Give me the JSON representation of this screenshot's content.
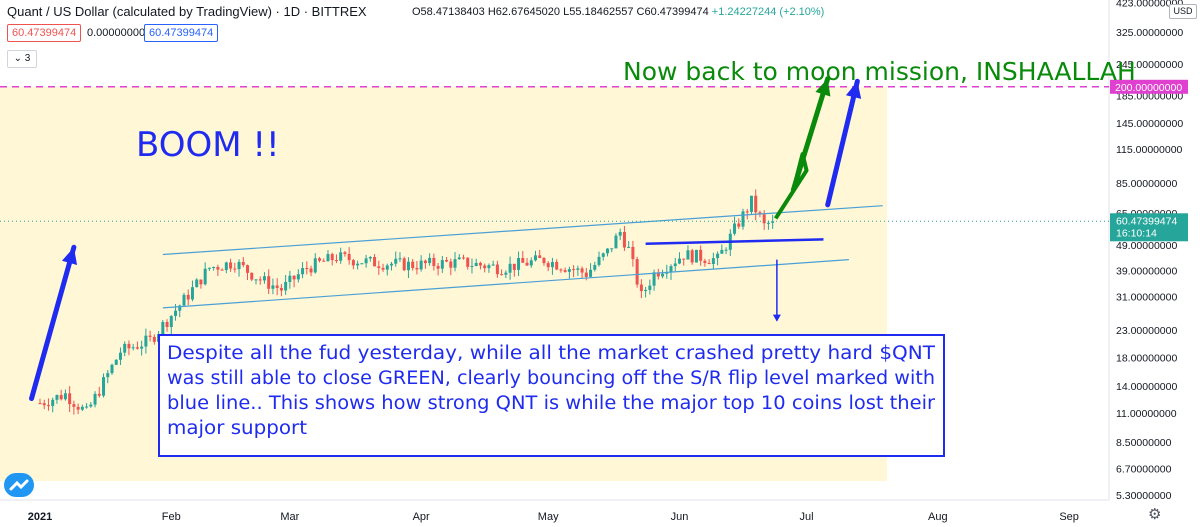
{
  "header": {
    "title": "Quant / US Dollar (calculated by TradingView) · 1D · BITTREX",
    "open": "O58.47138403",
    "high": "H62.67645020",
    "low": "L55.18462557",
    "close": "C60.47399474",
    "change": "+1.24227244 (+2.10%)",
    "sell_price": "60.47399474",
    "spread": "0.00000000",
    "buy_price": "60.47399474",
    "collapse_label": "⌄ 3"
  },
  "currency": "USD",
  "colors": {
    "up": "#26a69a",
    "down": "#ef5350",
    "blue_drawing": "#1f2bf0",
    "green_drawing": "#0a8a0a",
    "magenta": "#e040d0",
    "channel": "#4aa0d6"
  },
  "icons": {
    "logo": "tradingview-logo-icon",
    "settings": "gear-icon"
  },
  "chart_data": {
    "type": "candlestick",
    "scale": "log",
    "ylim": [
      5.3,
      430
    ],
    "y_ticks": [
      "423.00000000",
      "325.00000000",
      "245.00000000",
      "185.00000000",
      "145.00000000",
      "115.00000000",
      "85.00000000",
      "65.00000000",
      "49.00000000",
      "39.00000000",
      "31.00000000",
      "23.00000000",
      "18.00000000",
      "14.00000000",
      "11.00000000",
      "8.50000000",
      "6.70000000",
      "5.30000000"
    ],
    "y_tick_values": [
      423,
      325,
      245,
      185,
      145,
      115,
      85,
      65,
      49,
      39,
      31,
      23,
      18,
      14,
      11,
      8.5,
      6.7,
      5.3
    ],
    "x_ticks": [
      "2021",
      "Feb",
      "Mar",
      "Apr",
      "May",
      "Jun",
      "Jul",
      "Aug",
      "Sep"
    ],
    "x_tick_dates": [
      "2021-01-01",
      "2021-02-01",
      "2021-03-01",
      "2021-04-01",
      "2021-05-01",
      "2021-06-01",
      "2021-07-01",
      "2021-08-01",
      "2021-09-01"
    ],
    "last_price": "60.47399474",
    "countdown": "16:10:14",
    "horizontal_level": {
      "value": 200,
      "label": "200.00000000"
    },
    "ohlc_key_dates": [
      {
        "date": "2021-01-01",
        "close": 12
      },
      {
        "date": "2021-01-07",
        "close": 13
      },
      {
        "date": "2021-01-12",
        "close": 11
      },
      {
        "date": "2021-01-20",
        "close": 19
      },
      {
        "date": "2021-01-27",
        "close": 21
      },
      {
        "date": "2021-02-04",
        "close": 30
      },
      {
        "date": "2021-02-10",
        "close": 40
      },
      {
        "date": "2021-02-16",
        "close": 42
      },
      {
        "date": "2021-02-22",
        "close": 36
      },
      {
        "date": "2021-02-27",
        "close": 33
      },
      {
        "date": "2021-03-05",
        "close": 40
      },
      {
        "date": "2021-03-12",
        "close": 44
      },
      {
        "date": "2021-03-20",
        "close": 42
      },
      {
        "date": "2021-03-30",
        "close": 41
      },
      {
        "date": "2021-04-10",
        "close": 42
      },
      {
        "date": "2021-04-20",
        "close": 40
      },
      {
        "date": "2021-04-30",
        "close": 43
      },
      {
        "date": "2021-05-10",
        "close": 38
      },
      {
        "date": "2021-05-15",
        "close": 46
      },
      {
        "date": "2021-05-18",
        "close": 55
      },
      {
        "date": "2021-05-20",
        "close": 47
      },
      {
        "date": "2021-05-23",
        "close": 31
      },
      {
        "date": "2021-05-26",
        "close": 38
      },
      {
        "date": "2021-06-02",
        "close": 45
      },
      {
        "date": "2021-06-10",
        "close": 43
      },
      {
        "date": "2021-06-15",
        "close": 60
      },
      {
        "date": "2021-06-18",
        "close": 72
      },
      {
        "date": "2021-06-21",
        "close": 58
      },
      {
        "date": "2021-06-23",
        "close": 60.47
      }
    ]
  },
  "annotations": {
    "boom": "BOOM !!",
    "moon": "Now back to moon mission, INSHAALLAH",
    "note": [
      "Despite all the fud yesterday, while all the market crashed pretty hard $QNT",
      "was still able to close GREEN, clearly bouncing off the S/R flip level marked with",
      "blue line.. This shows how strong QNT is while the major top 10 coins lost their",
      "major support"
    ]
  }
}
